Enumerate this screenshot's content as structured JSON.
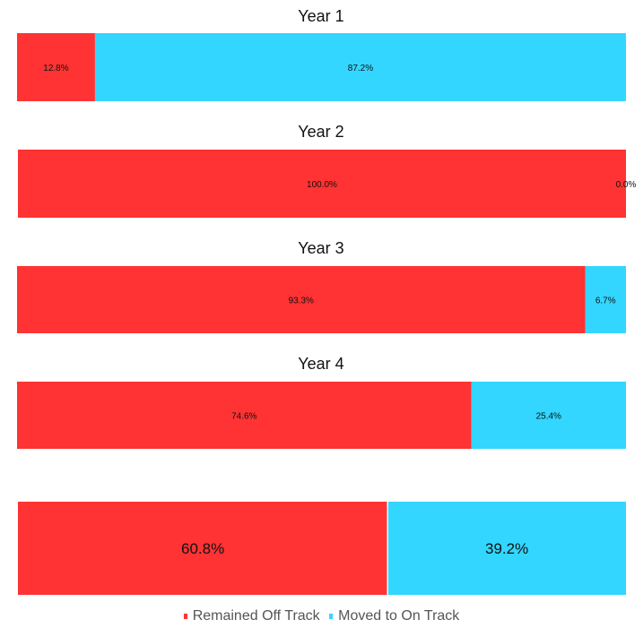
{
  "colors": {
    "off_track": "#ff3333",
    "on_track": "#33d6ff"
  },
  "legend": [
    {
      "label": "Remained Off Track",
      "color": "#ff3333"
    },
    {
      "label": "Moved to On Track",
      "color": "#33d6ff"
    }
  ],
  "chart_data": [
    {
      "type": "bar",
      "orientation": "horizontal",
      "stacked": true,
      "normalized": true,
      "title": "Year 1",
      "series": [
        {
          "name": "Remained Off Track",
          "values": [
            12.8
          ],
          "labels": [
            "12.8%"
          ]
        },
        {
          "name": "Moved to On Track",
          "values": [
            87.2
          ],
          "labels": [
            "87.2%"
          ]
        }
      ]
    },
    {
      "type": "bar",
      "orientation": "horizontal",
      "stacked": true,
      "normalized": true,
      "title": "Year 2",
      "series": [
        {
          "name": "Remained Off Track",
          "values": [
            100.0
          ],
          "labels": [
            "100.0%"
          ]
        },
        {
          "name": "Moved to On Track",
          "values": [
            0.0
          ],
          "labels": [
            "0.0%"
          ]
        }
      ]
    },
    {
      "type": "bar",
      "orientation": "horizontal",
      "stacked": true,
      "normalized": true,
      "title": "Year 3",
      "series": [
        {
          "name": "Remained Off Track",
          "values": [
            93.3
          ],
          "labels": [
            "93.3%"
          ]
        },
        {
          "name": "Moved to On Track",
          "values": [
            6.7
          ],
          "labels": [
            "6.7%"
          ]
        }
      ]
    },
    {
      "type": "bar",
      "orientation": "horizontal",
      "stacked": true,
      "normalized": true,
      "title": "Year 4",
      "series": [
        {
          "name": "Remained Off Track",
          "values": [
            74.6
          ],
          "labels": [
            "74.6%"
          ]
        },
        {
          "name": "Moved to On Track",
          "values": [
            25.4
          ],
          "labels": [
            "25.4%"
          ]
        }
      ]
    },
    {
      "type": "bar",
      "orientation": "horizontal",
      "stacked": true,
      "normalized": true,
      "title": "",
      "series": [
        {
          "name": "Remained Off Track",
          "values": [
            60.8
          ],
          "labels": [
            "60.8%"
          ]
        },
        {
          "name": "Moved to On Track",
          "values": [
            39.2
          ],
          "labels": [
            "39.2%"
          ]
        }
      ]
    }
  ]
}
